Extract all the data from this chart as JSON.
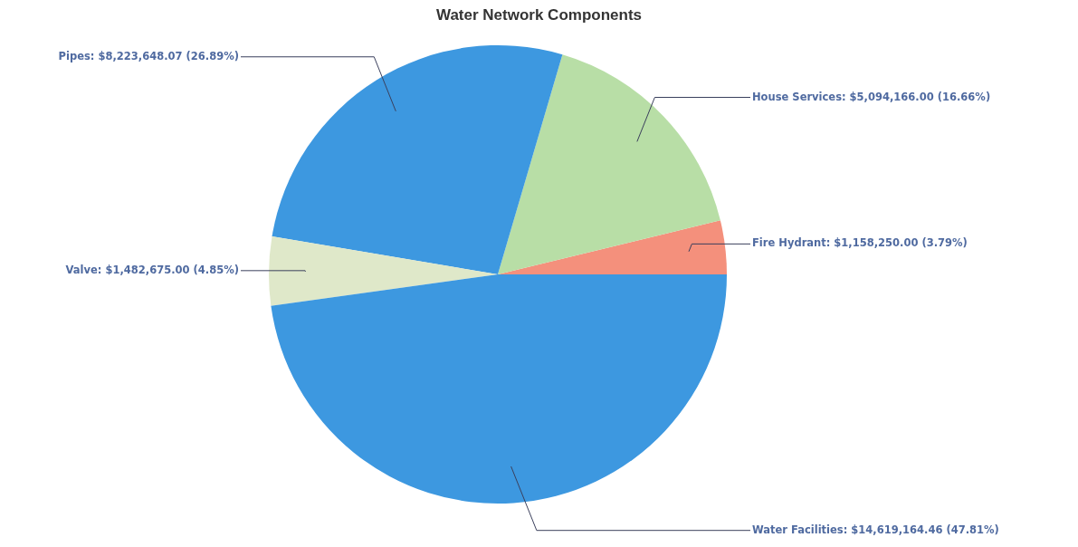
{
  "chart_data": {
    "type": "pie",
    "title": "Water Network Components",
    "categories": [
      "Fire Hydrant",
      "House Services",
      "Pipes",
      "Valve",
      "Water Facilities"
    ],
    "values": [
      1158250.0,
      5094166.0,
      8223648.07,
      1482675.0,
      14619164.46
    ],
    "colors": [
      "#f4907c",
      "#b8dea6",
      "#3d98e0",
      "#dfe8c9",
      "#3d98e0"
    ],
    "value_labels": [
      "$1,158,250.00 (3.79%)",
      "$5,094,166.00 (16.66%)",
      "$8,223,648.07 (26.89%)",
      "$1,482,675.00 (4.85%)",
      "$14,619,164.46 (47.81%)"
    ]
  }
}
